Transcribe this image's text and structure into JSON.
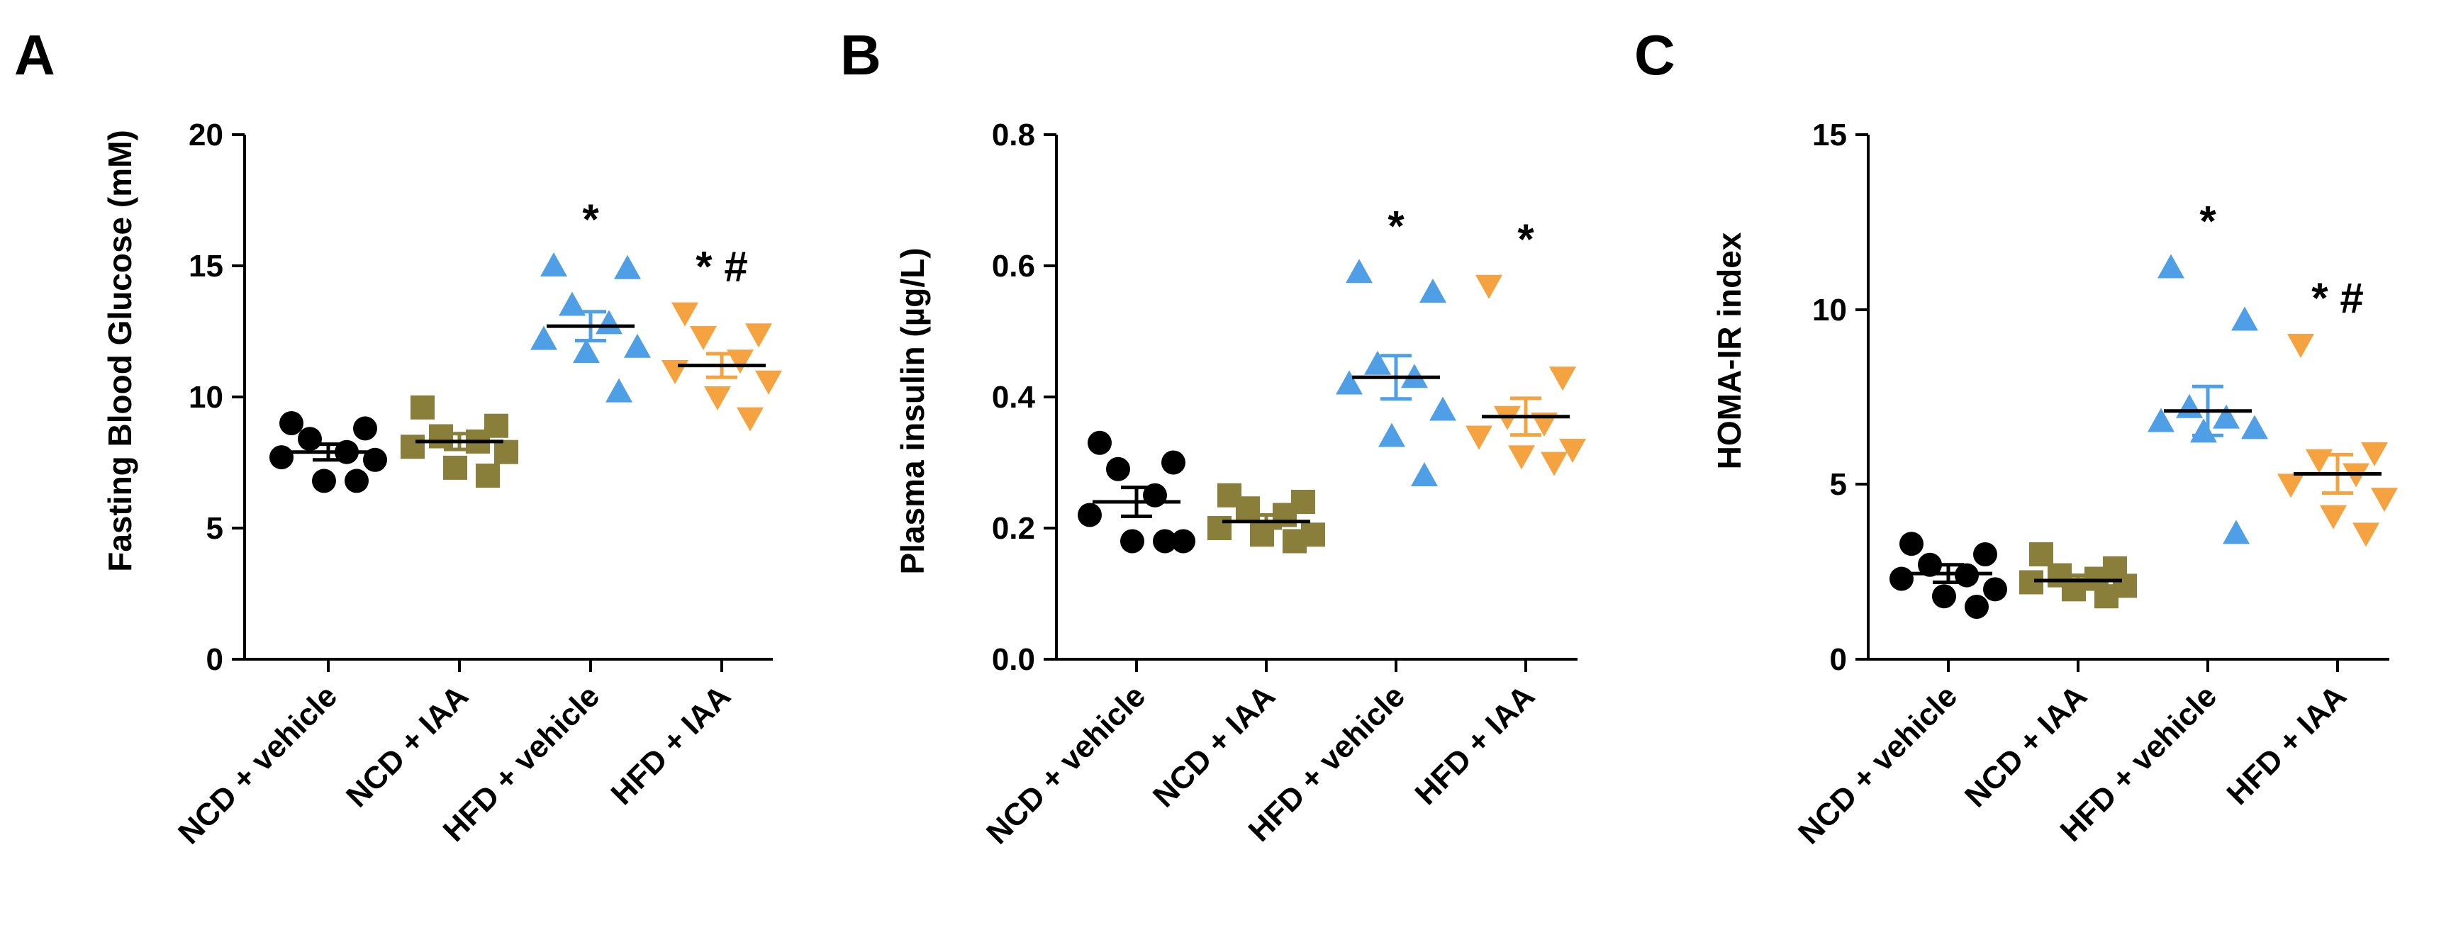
{
  "chart_data": [
    {
      "panel": "A",
      "type": "scatter",
      "ylabel": "Fasting Blood Glucose (mM)",
      "ylim": [
        0,
        20
      ],
      "yticks": [
        0,
        5,
        10,
        15,
        20
      ],
      "categories": [
        "NCD + vehicle",
        "NCD + IAA",
        "HFD + vehicle",
        "HFD + IAA"
      ],
      "groups": [
        {
          "name": "NCD + vehicle",
          "color": "#000000",
          "marker": "circle",
          "points": [
            9.0,
            8.8,
            8.4,
            7.9,
            7.7,
            7.6,
            6.8,
            6.8
          ],
          "mean": 7.9,
          "sem": 0.3,
          "significance": ""
        },
        {
          "name": "NCD + IAA",
          "color": "#8a7e3b",
          "marker": "square",
          "points": [
            9.6,
            8.9,
            8.5,
            8.3,
            8.1,
            7.9,
            7.3,
            7.0
          ],
          "mean": 8.3,
          "sem": 0.3,
          "significance": ""
        },
        {
          "name": "HFD + vehicle",
          "color": "#4f9fe6",
          "marker": "triangle-up",
          "points": [
            15.0,
            14.9,
            13.5,
            12.8,
            12.2,
            11.9,
            11.7,
            10.2
          ],
          "mean": 12.7,
          "sem": 0.55,
          "significance": "*"
        },
        {
          "name": "HFD + IAA",
          "color": "#f5a340",
          "marker": "triangle-down",
          "points": [
            13.2,
            12.4,
            12.3,
            11.4,
            11.0,
            10.6,
            10.0,
            9.2
          ],
          "mean": 11.2,
          "sem": 0.45,
          "significance": "* #"
        }
      ]
    },
    {
      "panel": "B",
      "type": "scatter",
      "ylabel": "Plasma insulin (µg/L)",
      "ylim": [
        0.0,
        0.8
      ],
      "yticks": [
        "0.0",
        "0.2",
        "0.4",
        "0.6",
        "0.8"
      ],
      "categories": [
        "NCD + vehicle",
        "NCD + IAA",
        "HFD + vehicle",
        "HFD + IAA"
      ],
      "groups": [
        {
          "name": "NCD + vehicle",
          "color": "#000000",
          "marker": "circle",
          "points": [
            0.33,
            0.3,
            0.29,
            0.25,
            0.22,
            0.18,
            0.18,
            0.18
          ],
          "mean": 0.24,
          "sem": 0.022,
          "significance": ""
        },
        {
          "name": "NCD + IAA",
          "color": "#8a7e3b",
          "marker": "square",
          "points": [
            0.25,
            0.24,
            0.23,
            0.22,
            0.2,
            0.19,
            0.19,
            0.18
          ],
          "mean": 0.21,
          "sem": 0.01,
          "significance": ""
        },
        {
          "name": "HFD + vehicle",
          "color": "#4f9fe6",
          "marker": "triangle-up",
          "points": [
            0.59,
            0.56,
            0.45,
            0.43,
            0.42,
            0.38,
            0.34,
            0.28
          ],
          "mean": 0.43,
          "sem": 0.033,
          "significance": "*"
        },
        {
          "name": "HFD + IAA",
          "color": "#f5a340",
          "marker": "triangle-down",
          "points": [
            0.57,
            0.43,
            0.37,
            0.36,
            0.34,
            0.32,
            0.31,
            0.3
          ],
          "mean": 0.37,
          "sem": 0.028,
          "significance": "*"
        }
      ]
    },
    {
      "panel": "C",
      "type": "scatter",
      "ylabel": "HOMA-IR index",
      "ylim": [
        0,
        15
      ],
      "yticks": [
        0,
        5,
        10,
        15
      ],
      "categories": [
        "NCD + vehicle",
        "NCD + IAA",
        "HFD + vehicle",
        "HFD + IAA"
      ],
      "groups": [
        {
          "name": "NCD + vehicle",
          "color": "#000000",
          "marker": "circle",
          "points": [
            3.3,
            3.0,
            2.7,
            2.4,
            2.3,
            2.0,
            1.8,
            1.5
          ],
          "mean": 2.45,
          "sem": 0.25,
          "significance": ""
        },
        {
          "name": "NCD + IAA",
          "color": "#8a7e3b",
          "marker": "square",
          "points": [
            3.0,
            2.6,
            2.4,
            2.3,
            2.2,
            2.1,
            2.0,
            1.8
          ],
          "mean": 2.25,
          "sem": 0.15,
          "significance": ""
        },
        {
          "name": "HFD + vehicle",
          "color": "#4f9fe6",
          "marker": "triangle-up",
          "points": [
            11.2,
            9.7,
            7.2,
            6.9,
            6.8,
            6.6,
            6.5,
            3.6
          ],
          "mean": 7.1,
          "sem": 0.7,
          "significance": "*"
        },
        {
          "name": "HFD + IAA",
          "color": "#f5a340",
          "marker": "triangle-down",
          "points": [
            9.0,
            5.9,
            5.7,
            5.3,
            5.0,
            4.6,
            4.1,
            3.6
          ],
          "mean": 5.3,
          "sem": 0.55,
          "significance": "* #"
        }
      ]
    }
  ]
}
